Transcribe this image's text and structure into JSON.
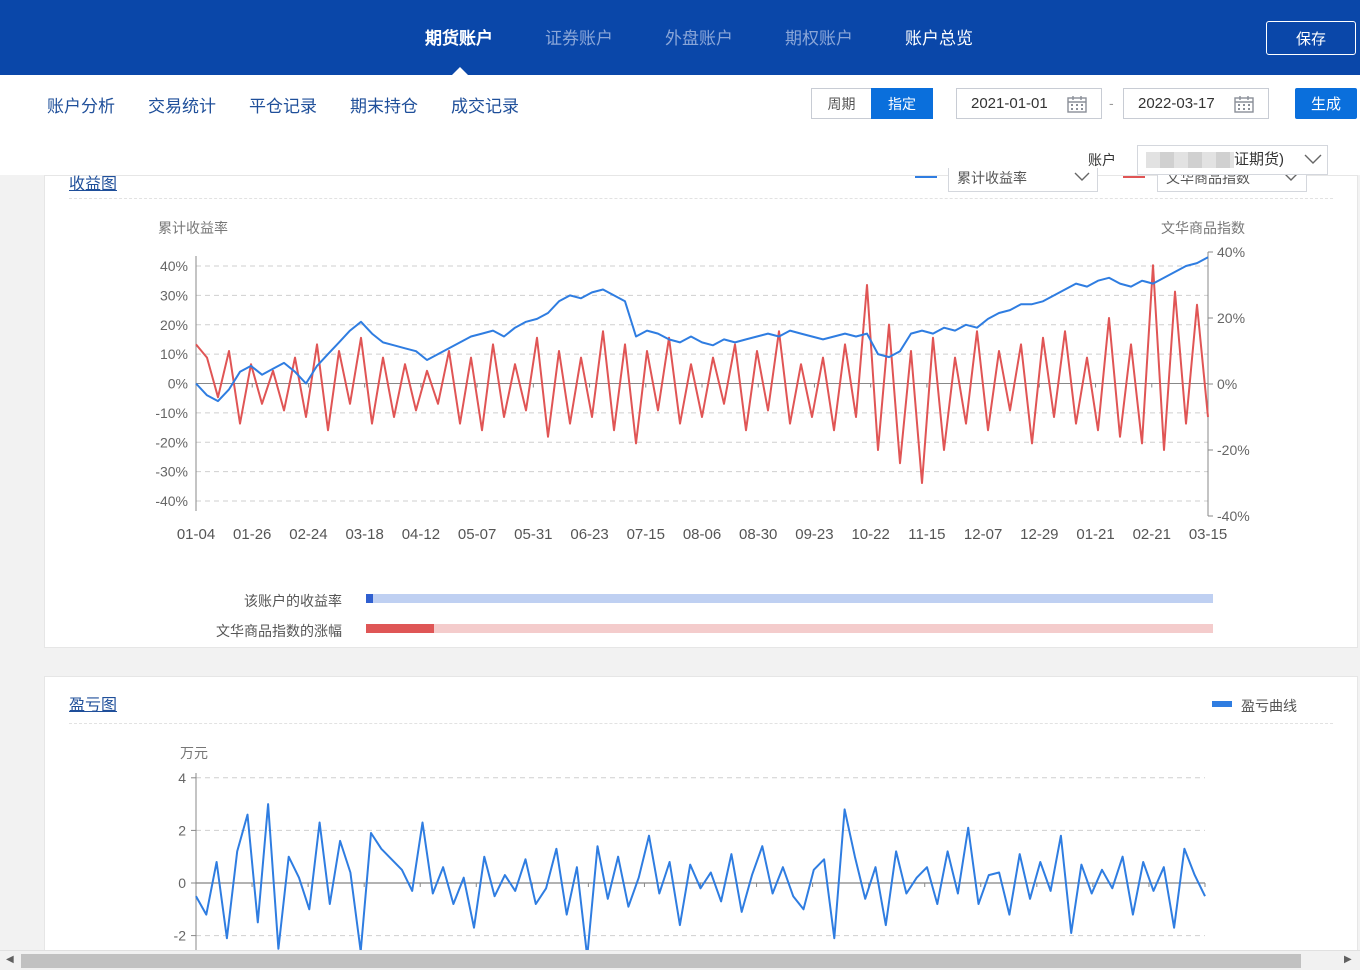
{
  "top_nav": {
    "tabs": [
      {
        "label": "期货账户"
      },
      {
        "label": "证券账户"
      },
      {
        "label": "外盘账户"
      },
      {
        "label": "期权账户"
      },
      {
        "label": "账户总览"
      }
    ],
    "save_label": "保存"
  },
  "sub_nav": {
    "tabs": [
      {
        "label": "账户分析"
      },
      {
        "label": "交易统计"
      },
      {
        "label": "平仓记录"
      },
      {
        "label": "期末持仓"
      },
      {
        "label": "成交记录"
      }
    ],
    "period_label": "周期",
    "custom_label": "指定",
    "start_date": "2021-01-01",
    "end_date": "2022-03-17",
    "generate_label": "生成",
    "account_label": "账户",
    "account_value_visible": "证期货)"
  },
  "revenue_card": {
    "title": "收益图",
    "legend_left": "累计收益率",
    "legend_right": "文华商品指数",
    "bar1_label": "该账户的收益率",
    "bar2_label": "文华商品指数的涨幅",
    "bar1_fraction": 0.008,
    "bar2_fraction": 0.08
  },
  "pnl_card": {
    "title": "盈亏图",
    "legend": "盈亏曲线",
    "unit": "万元"
  },
  "colors": {
    "blue_series": "#2f7de1",
    "red_series": "#e05555",
    "brand": "#0a47a9",
    "accent": "#0a6fdc"
  },
  "chart_data": [
    {
      "type": "line",
      "ylabel": "累计收益率",
      "y2label": "文华商品指数",
      "x_tick_labels": [
        "01-04",
        "01-26",
        "02-24",
        "03-18",
        "04-12",
        "05-07",
        "05-31",
        "06-23",
        "07-15",
        "08-06",
        "08-30",
        "09-23",
        "10-22",
        "11-15",
        "12-07",
        "12-29",
        "01-21",
        "02-21",
        "03-15"
      ],
      "y_ticks": [
        "40%",
        "30%",
        "20%",
        "10%",
        "0%",
        "-10%",
        "-20%",
        "-30%",
        "-40%"
      ],
      "y2_ticks": [
        "40%",
        "20%",
        "0%",
        "-20%",
        "-40%"
      ],
      "ylim": [
        -40,
        40
      ],
      "y2lim": [
        -40,
        40
      ],
      "grid": true,
      "series": [
        {
          "name": "累计收益率",
          "axis": "left",
          "values": [
            0,
            -4,
            -6,
            -2,
            4,
            6,
            3,
            5,
            7,
            4,
            0,
            6,
            10,
            14,
            18,
            21,
            17,
            14,
            13,
            12,
            11,
            8,
            10,
            12,
            14,
            16,
            17,
            18,
            16,
            19,
            21,
            22,
            24,
            28,
            30,
            29,
            31,
            32,
            30,
            28,
            16,
            18,
            17,
            15,
            14,
            16,
            14,
            13,
            15,
            14,
            15,
            16,
            17,
            16,
            18,
            17,
            16,
            15,
            16,
            17,
            16,
            17,
            10,
            9,
            11,
            17,
            18,
            17,
            19,
            18,
            20,
            19,
            22,
            24,
            25,
            27,
            27,
            28,
            30,
            32,
            34,
            33,
            35,
            36,
            34,
            33,
            35,
            34,
            36,
            38,
            40,
            41,
            43
          ]
        },
        {
          "name": "文华商品指数",
          "axis": "right",
          "values": [
            12,
            8,
            -4,
            10,
            -12,
            6,
            -6,
            4,
            -8,
            8,
            -10,
            12,
            -14,
            10,
            -6,
            14,
            -12,
            8,
            -10,
            6,
            -8,
            4,
            -6,
            10,
            -12,
            8,
            -14,
            12,
            -10,
            6,
            -8,
            14,
            -16,
            10,
            -12,
            8,
            -10,
            16,
            -14,
            12,
            -18,
            10,
            -8,
            14,
            -12,
            6,
            -10,
            8,
            -6,
            12,
            -14,
            10,
            -8,
            16,
            -12,
            6,
            -10,
            8,
            -14,
            12,
            -10,
            30,
            -20,
            18,
            -24,
            10,
            -30,
            14,
            -20,
            8,
            -12,
            16,
            -14,
            10,
            -8,
            12,
            -18,
            14,
            -10,
            16,
            -12,
            8,
            -14,
            20,
            -16,
            12,
            -18,
            36,
            -20,
            28,
            -12,
            24,
            -10
          ]
        }
      ]
    },
    {
      "type": "line",
      "ylabel": "万元",
      "y_ticks": [
        "4",
        "2",
        "0",
        "-2"
      ],
      "ylim": [
        -2.5,
        4
      ],
      "grid": true,
      "series": [
        {
          "name": "盈亏曲线",
          "values": [
            -0.5,
            -1.2,
            0.8,
            -2.1,
            1.2,
            2.6,
            -1.5,
            3.0,
            -2.5,
            1.0,
            0.2,
            -1.0,
            2.3,
            -0.8,
            1.6,
            0.4,
            -2.6,
            1.9,
            1.3,
            0.9,
            0.5,
            -0.3,
            2.3,
            -0.4,
            0.6,
            -0.8,
            0.2,
            -1.7,
            1.0,
            -0.5,
            0.3,
            -0.3,
            0.9,
            -0.8,
            -0.2,
            1.3,
            -1.2,
            0.6,
            -2.8,
            1.4,
            -0.6,
            1.0,
            -0.9,
            0.2,
            1.8,
            -0.4,
            0.8,
            -1.6,
            0.7,
            -0.2,
            0.4,
            -0.7,
            1.1,
            -1.1,
            0.3,
            1.4,
            -0.4,
            0.6,
            -0.5,
            -1.0,
            0.5,
            0.9,
            -2.1,
            2.8,
            1.0,
            -0.6,
            0.6,
            -1.6,
            1.2,
            -0.4,
            0.2,
            0.6,
            -0.8,
            1.2,
            -0.4,
            2.1,
            -0.8,
            0.3,
            0.4,
            -1.2,
            1.1,
            -0.6,
            0.8,
            -0.3,
            1.8,
            -1.9,
            0.7,
            -0.4,
            0.5,
            -0.2,
            1.0,
            -1.2,
            0.8,
            -0.3,
            0.6,
            -1.7,
            1.3,
            0.3,
            -0.5
          ]
        }
      ]
    }
  ]
}
